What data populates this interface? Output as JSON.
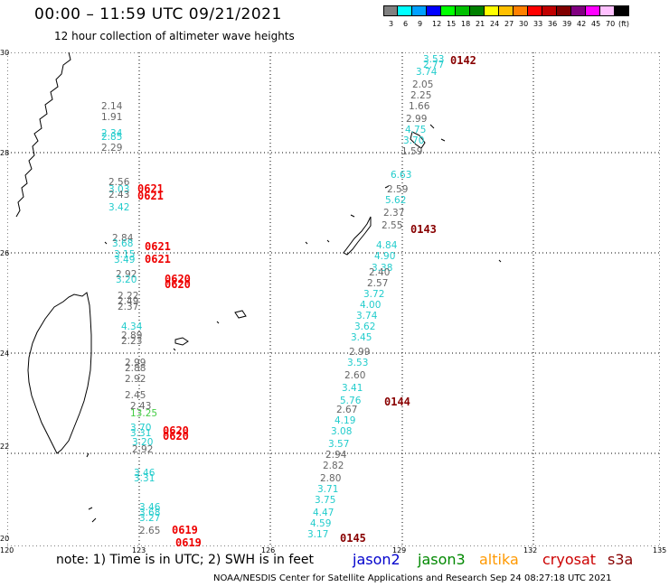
{
  "header": {
    "title": "00:00 – 11:59 UTC 09/21/2021",
    "subtitle": "12 hour collection of altimeter wave heights"
  },
  "legend": {
    "colors": [
      "#808080",
      "#00ffff",
      "#00a0ff",
      "#0000ff",
      "#00ff00",
      "#00c000",
      "#008000",
      "#ffff00",
      "#ffc000",
      "#ff8000",
      "#ff0000",
      "#c00000",
      "#800000",
      "#800080",
      "#ff00ff",
      "#ffc0ff",
      "#000000"
    ],
    "labels": [
      "3",
      "6",
      "9",
      "12",
      "15",
      "18",
      "21",
      "24",
      "27",
      "30",
      "33",
      "36",
      "39",
      "42",
      "45",
      "70",
      "(ft)"
    ]
  },
  "axes": {
    "lat_labels": [
      "30",
      "28",
      "26",
      "24",
      "22",
      "20"
    ],
    "lon_labels": [
      "120",
      "123",
      "126",
      "129",
      "132",
      "135"
    ]
  },
  "notes": "note: 1) Time is in UTC; 2) SWH is in feet",
  "satellites": [
    {
      "name": "jason2",
      "color": "#0000cc"
    },
    {
      "name": "jason3",
      "color": "#008800"
    },
    {
      "name": "altika",
      "color": "#ff9900"
    },
    {
      "name": "cryosat",
      "color": "#cc0000"
    },
    {
      "name": "s3a",
      "color": "#880000"
    }
  ],
  "credit": "NOAA/NESDIS Center for Satellite Applications and Research     Sep 24 08:27:18 UTC 2021",
  "wave_values": [
    {
      "v": "3.53",
      "c": "#22cccc"
    },
    {
      "v": "2.77",
      "c": "#22cccc"
    },
    {
      "v": "3.74",
      "c": "#22cccc"
    },
    {
      "v": "2.05",
      "c": "#666666"
    },
    {
      "v": "2.25",
      "c": "#666666"
    },
    {
      "v": "1.66",
      "c": "#666666"
    },
    {
      "v": "2.99",
      "c": "#666666"
    },
    {
      "v": "4.75",
      "c": "#22cccc"
    },
    {
      "v": "3.70",
      "c": "#22cccc"
    },
    {
      "v": "1.59",
      "c": "#666666"
    },
    {
      "v": "6.63",
      "c": "#22cccc"
    },
    {
      "v": "2.59",
      "c": "#666666"
    },
    {
      "v": "5.62",
      "c": "#22cccc"
    },
    {
      "v": "2.37",
      "c": "#666666"
    },
    {
      "v": "2.55",
      "c": "#666666"
    },
    {
      "v": "4.84",
      "c": "#22cccc"
    },
    {
      "v": "4.90",
      "c": "#22cccc"
    },
    {
      "v": "3.38",
      "c": "#22cccc"
    },
    {
      "v": "2.40",
      "c": "#666666"
    },
    {
      "v": "2.57",
      "c": "#666666"
    },
    {
      "v": "3.72",
      "c": "#22cccc"
    },
    {
      "v": "4.00",
      "c": "#22cccc"
    },
    {
      "v": "3.74",
      "c": "#22cccc"
    },
    {
      "v": "3.62",
      "c": "#22cccc"
    },
    {
      "v": "3.45",
      "c": "#22cccc"
    },
    {
      "v": "2.99",
      "c": "#666666"
    },
    {
      "v": "3.53",
      "c": "#22cccc"
    },
    {
      "v": "2.60",
      "c": "#666666"
    },
    {
      "v": "3.41",
      "c": "#22cccc"
    },
    {
      "v": "5.76",
      "c": "#22cccc"
    },
    {
      "v": "2.67",
      "c": "#666666"
    },
    {
      "v": "4.19",
      "c": "#22cccc"
    },
    {
      "v": "3.08",
      "c": "#22cccc"
    },
    {
      "v": "3.57",
      "c": "#22cccc"
    },
    {
      "v": "2.94",
      "c": "#666666"
    },
    {
      "v": "2.82",
      "c": "#666666"
    },
    {
      "v": "2.80",
      "c": "#666666"
    },
    {
      "v": "3.71",
      "c": "#22cccc"
    },
    {
      "v": "3.75",
      "c": "#22cccc"
    },
    {
      "v": "4.47",
      "c": "#22cccc"
    },
    {
      "v": "4.59",
      "c": "#22cccc"
    },
    {
      "v": "3.17",
      "c": "#22cccc"
    },
    {
      "v": "2.14",
      "c": "#666666"
    },
    {
      "v": "1.91",
      "c": "#666666"
    },
    {
      "v": "2.34",
      "c": "#22cccc"
    },
    {
      "v": "2.85",
      "c": "#22cccc"
    },
    {
      "v": "2.29",
      "c": "#666666"
    },
    {
      "v": "2.56",
      "c": "#666666"
    },
    {
      "v": "3.03",
      "c": "#22cccc"
    },
    {
      "v": "2.43",
      "c": "#666666"
    },
    {
      "v": "3.42",
      "c": "#22cccc"
    },
    {
      "v": "2.84",
      "c": "#666666"
    },
    {
      "v": "3.68",
      "c": "#22cccc"
    },
    {
      "v": "3.15",
      "c": "#22cccc"
    },
    {
      "v": "3.49",
      "c": "#22cccc"
    },
    {
      "v": "2.92",
      "c": "#666666"
    },
    {
      "v": "3.20",
      "c": "#22cccc"
    },
    {
      "v": "2.22",
      "c": "#666666"
    },
    {
      "v": "2.49",
      "c": "#666666"
    },
    {
      "v": "2.37",
      "c": "#666666"
    },
    {
      "v": "4.34",
      "c": "#22cccc"
    },
    {
      "v": "2.89",
      "c": "#666666"
    },
    {
      "v": "2.23",
      "c": "#666666"
    },
    {
      "v": "2.99",
      "c": "#666666"
    },
    {
      "v": "2.88",
      "c": "#666666"
    },
    {
      "v": "2.92",
      "c": "#666666"
    },
    {
      "v": "2.45",
      "c": "#666666"
    },
    {
      "v": "2.43",
      "c": "#666666"
    },
    {
      "v": "13.25",
      "c": "#44cc44"
    },
    {
      "v": "3.70",
      "c": "#22cccc"
    },
    {
      "v": "3.31",
      "c": "#22cccc"
    },
    {
      "v": "3.20",
      "c": "#22cccc"
    },
    {
      "v": "2.92",
      "c": "#666666"
    },
    {
      "v": "3.46",
      "c": "#22cccc"
    },
    {
      "v": "3.31",
      "c": "#22cccc"
    },
    {
      "v": "3.46",
      "c": "#22cccc"
    },
    {
      "v": "3.68",
      "c": "#22cccc"
    },
    {
      "v": "3.27",
      "c": "#22cccc"
    },
    {
      "v": "2.65",
      "c": "#666666"
    }
  ],
  "time_labels": [
    {
      "v": "0142",
      "c": "#880000"
    },
    {
      "v": "0143",
      "c": "#880000"
    },
    {
      "v": "0144",
      "c": "#880000"
    },
    {
      "v": "0145",
      "c": "#880000"
    },
    {
      "v": "0621",
      "c": "#ee0000"
    },
    {
      "v": "0621",
      "c": "#ee0000"
    },
    {
      "v": "0621",
      "c": "#ee0000"
    },
    {
      "v": "0621",
      "c": "#ee0000"
    },
    {
      "v": "0620",
      "c": "#ee0000"
    },
    {
      "v": "0620",
      "c": "#ee0000"
    },
    {
      "v": "0620",
      "c": "#ee0000"
    },
    {
      "v": "0620",
      "c": "#ee0000"
    },
    {
      "v": "0619",
      "c": "#ee0000"
    },
    {
      "v": "0619",
      "c": "#ee0000"
    }
  ]
}
